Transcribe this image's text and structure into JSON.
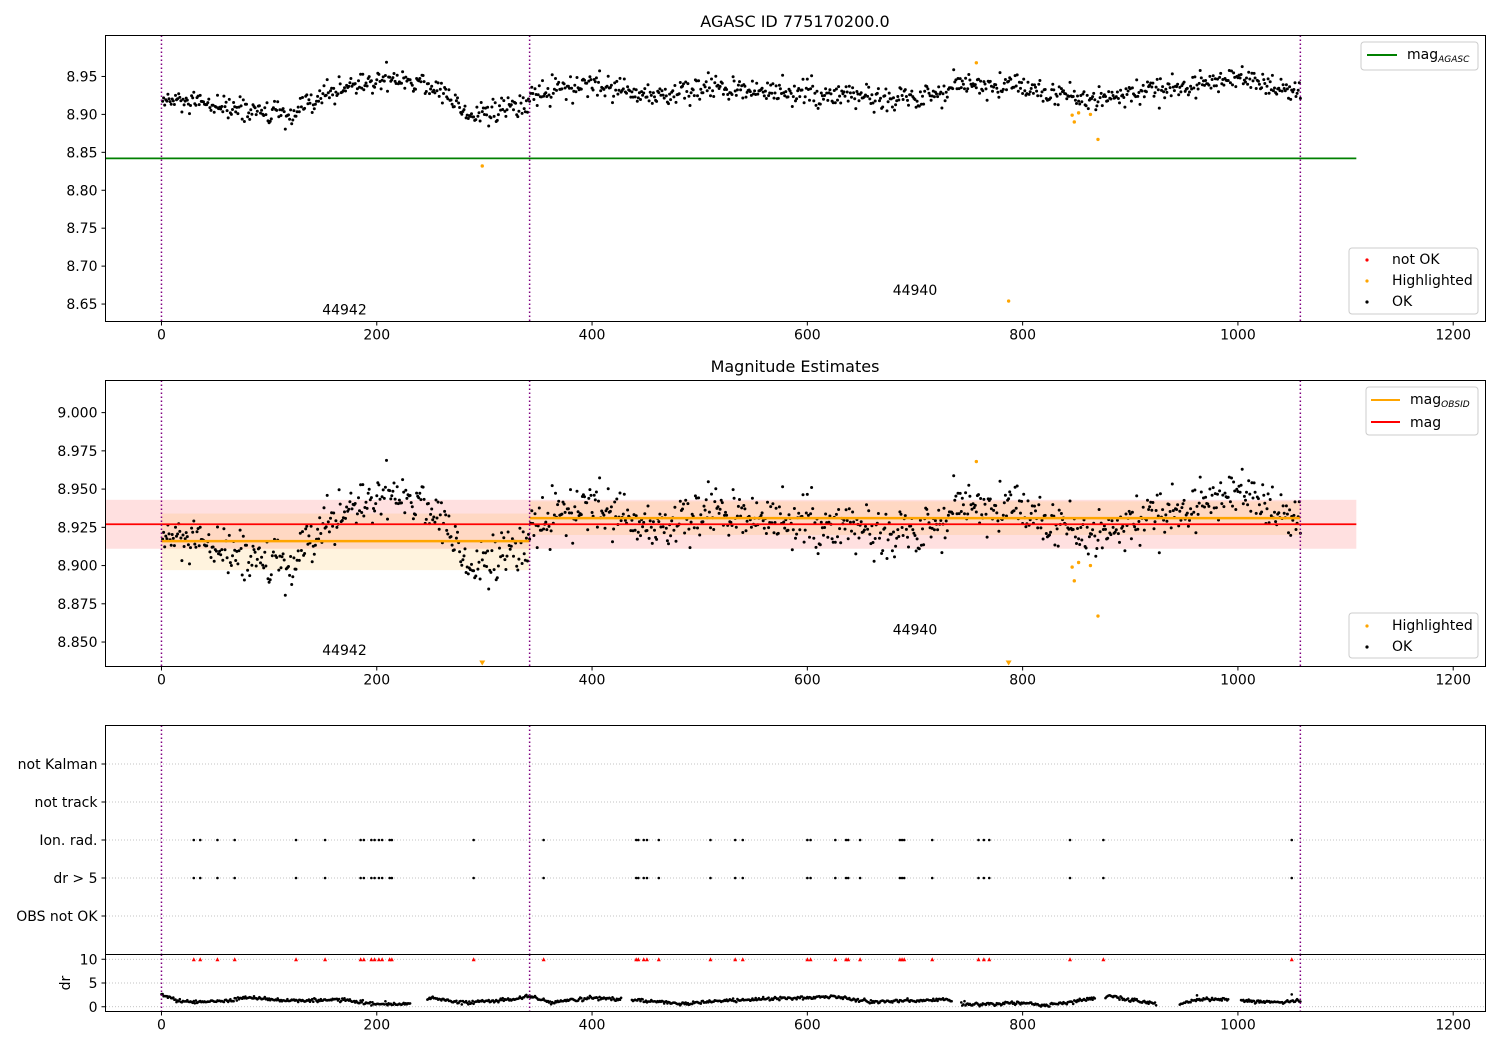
{
  "chart_data": [
    {
      "type": "scatter",
      "title": "AGASC ID 775170200.0",
      "xlim": [
        -52,
        1230
      ],
      "ylim": [
        8.627,
        9.004
      ],
      "x_ticks": [
        0,
        200,
        400,
        600,
        800,
        1000,
        1200
      ],
      "y_ticks": [
        8.65,
        8.7,
        8.75,
        8.8,
        8.85,
        8.9,
        8.95
      ],
      "y_tick_labels": [
        "8.65",
        "8.70",
        "8.75",
        "8.80",
        "8.85",
        "8.90",
        "8.95"
      ],
      "obs_boundaries": [
        0,
        342,
        1058
      ],
      "obs_labels": [
        {
          "text": "44942",
          "x": 170,
          "y": 8.636
        },
        {
          "text": "44940",
          "x": 700,
          "y": 8.662
        }
      ],
      "mag_agasc": 8.842,
      "mag_agasc_range": [
        -52,
        1110
      ],
      "segments": [
        {
          "x": [
            0,
            40,
            80,
            120,
            160,
            200,
            230,
            260,
            290,
            320,
            342
          ],
          "y": [
            8.918,
            8.912,
            8.906,
            8.896,
            8.932,
            8.945,
            8.947,
            8.93,
            8.898,
            8.906,
            8.912
          ]
        },
        {
          "x": [
            342,
            400,
            460,
            520,
            580,
            640,
            700,
            750,
            800,
            850,
            880,
            920,
            960,
            1000,
            1040,
            1058
          ],
          "y": [
            8.928,
            8.938,
            8.925,
            8.935,
            8.93,
            8.922,
            8.923,
            8.94,
            8.935,
            8.92,
            8.922,
            8.932,
            8.938,
            8.95,
            8.935,
            8.928
          ]
        }
      ],
      "noise": 0.008,
      "highlighted": [
        {
          "x": 298,
          "y": 8.832
        },
        {
          "x": 757,
          "y": 8.968
        },
        {
          "x": 787,
          "y": 8.654
        },
        {
          "x": 846,
          "y": 8.899
        },
        {
          "x": 848,
          "y": 8.89
        },
        {
          "x": 852,
          "y": 8.902
        },
        {
          "x": 863,
          "y": 8.9
        },
        {
          "x": 870,
          "y": 8.867
        }
      ],
      "legend_upper": [
        {
          "label_main": "mag",
          "label_sub": "AGASC",
          "color": "#008000"
        }
      ],
      "legend_lower": [
        {
          "label": "not OK",
          "color": "#ff0000"
        },
        {
          "label": "Highlighted",
          "color": "#ffa500"
        },
        {
          "label": "OK",
          "color": "#000000"
        }
      ]
    },
    {
      "type": "scatter",
      "title": "Magnitude Estimates",
      "xlim": [
        -52,
        1230
      ],
      "ylim": [
        8.834,
        9.021
      ],
      "x_ticks": [
        0,
        200,
        400,
        600,
        800,
        1000,
        1200
      ],
      "y_ticks": [
        8.85,
        8.875,
        8.9,
        8.925,
        8.95,
        8.975,
        9.0
      ],
      "y_tick_labels": [
        "8.850",
        "8.875",
        "8.900",
        "8.925",
        "8.950",
        "8.975",
        "9.000"
      ],
      "obs_boundaries": [
        0,
        342,
        1058
      ],
      "obs_labels": [
        {
          "text": "44942",
          "x": 170,
          "y": 8.8415
        },
        {
          "text": "44940",
          "x": 700,
          "y": 8.855
        }
      ],
      "mag": 8.927,
      "mag_band": [
        8.911,
        8.943
      ],
      "mag_range": [
        -52,
        1110
      ],
      "mag_obsid": [
        {
          "x0": 0,
          "x1": 342,
          "value": 8.916,
          "band": [
            8.897,
            8.934
          ]
        },
        {
          "x0": 342,
          "x1": 1058,
          "value": 8.931,
          "band": [
            8.92,
            8.942
          ]
        }
      ],
      "out_of_range_markers": [
        298,
        787
      ],
      "legend_upper": [
        {
          "label_main": "mag",
          "label_sub": "OBSID",
          "color": "#ffa500"
        },
        {
          "label_main": "mag",
          "label_sub": "",
          "color": "#ff0000"
        }
      ],
      "legend_lower": [
        {
          "label": "Highlighted",
          "color": "#ffa500"
        },
        {
          "label": "OK",
          "color": "#000000"
        }
      ]
    },
    {
      "type": "scatter",
      "title": "",
      "xlim": [
        -52,
        1230
      ],
      "x_ticks": [
        0,
        200,
        400,
        600,
        800,
        1000,
        1200
      ],
      "flag_rows": [
        "not Kalman",
        "not track",
        "Ion. rad.",
        "dr > 5",
        "OBS not OK"
      ],
      "flag_x": [
        30,
        36,
        52,
        68,
        125,
        152,
        185,
        188,
        195,
        198,
        202,
        205,
        212,
        214,
        290,
        355,
        441,
        443,
        448,
        451,
        462,
        510,
        533,
        540,
        600,
        603,
        626,
        636,
        638,
        649,
        686,
        688,
        690,
        716,
        759,
        764,
        769,
        844,
        875,
        1050
      ],
      "dr_ylim": [
        -1,
        11
      ],
      "dr_ticks": [
        0,
        5,
        10
      ],
      "dr_label": "dr",
      "dr_points": [
        {
          "x": 0,
          "y": 2.5
        },
        {
          "x": 20,
          "y": 1.0
        },
        {
          "x": 60,
          "y": 1.2
        },
        {
          "x": 80,
          "y": 2.0
        },
        {
          "x": 120,
          "y": 1.3
        },
        {
          "x": 170,
          "y": 1.5
        },
        {
          "x": 200,
          "y": 0.5
        },
        {
          "x": 230,
          "y": 0.6
        },
        {
          "x": 250,
          "y": 1.9
        },
        {
          "x": 280,
          "y": 0.8
        },
        {
          "x": 330,
          "y": 1.6
        },
        {
          "x": 342,
          "y": 2.3
        },
        {
          "x": 360,
          "y": 1.0
        },
        {
          "x": 400,
          "y": 1.9
        },
        {
          "x": 450,
          "y": 1.3
        },
        {
          "x": 480,
          "y": 0.7
        },
        {
          "x": 520,
          "y": 1.2
        },
        {
          "x": 560,
          "y": 1.7
        },
        {
          "x": 600,
          "y": 1.8
        },
        {
          "x": 625,
          "y": 2.2
        },
        {
          "x": 660,
          "y": 1.0
        },
        {
          "x": 700,
          "y": 1.3
        },
        {
          "x": 730,
          "y": 1.6
        },
        {
          "x": 750,
          "y": 0.4
        },
        {
          "x": 790,
          "y": 0.8
        },
        {
          "x": 820,
          "y": 0.3
        },
        {
          "x": 850,
          "y": 1.2
        },
        {
          "x": 880,
          "y": 2.3
        },
        {
          "x": 910,
          "y": 1.0
        },
        {
          "x": 940,
          "y": 0.4
        },
        {
          "x": 970,
          "y": 1.6
        },
        {
          "x": 1010,
          "y": 1.2
        },
        {
          "x": 1040,
          "y": 0.9
        },
        {
          "x": 1058,
          "y": 1.3
        }
      ],
      "dr_gaps": [
        [
          232,
          246
        ],
        [
          428,
          436
        ],
        [
          735,
          742
        ],
        [
          868,
          876
        ],
        [
          925,
          945
        ],
        [
          992,
          1002
        ]
      ],
      "dr_extra": [
        {
          "x": 1050,
          "y": 2.6
        },
        {
          "x": 962,
          "y": 2.4
        }
      ],
      "red_markers_y": 10
    }
  ]
}
